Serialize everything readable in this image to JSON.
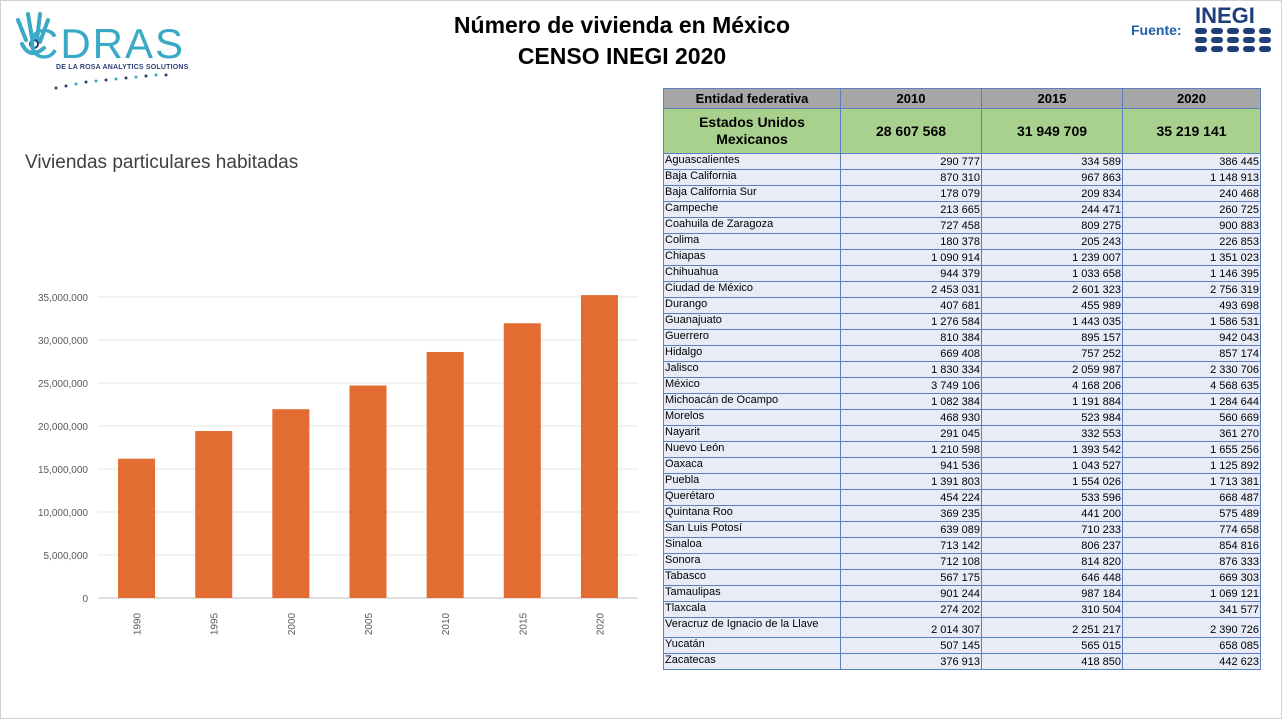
{
  "header": {
    "title_line1": "Número de vivienda en México",
    "title_line2": "CENSO INEGI 2020",
    "source_label": "Fuente:",
    "source_logo_text": "INEGI"
  },
  "logo": {
    "name": "CDRAS",
    "subtitle": "DE LA ROSA ANALYTICS SOLUTIONS"
  },
  "chart_data": {
    "type": "bar",
    "title": "Viviendas particulares habitadas",
    "categories": [
      "1990",
      "1995",
      "2000",
      "2005",
      "2010",
      "2015",
      "2020"
    ],
    "values": [
      16197802,
      19412777,
      21954733,
      24706956,
      28607568,
      31949709,
      35219141
    ],
    "ylim": [
      0,
      35000000
    ],
    "yticks": [
      "0",
      "5,000,000",
      "10,000,000",
      "15,000,000",
      "20,000,000",
      "25,000,000",
      "30,000,000",
      "35,000,000"
    ],
    "xlabel": "",
    "ylabel": "",
    "bar_color": "#e36c32",
    "grid": true
  },
  "table": {
    "headers": [
      "Entidad federativa",
      "2010",
      "2015",
      "2020"
    ],
    "total": {
      "name": "Estados Unidos Mexicanos",
      "v2010": "28 607 568",
      "v2015": "31 949 709",
      "v2020": "35 219 141"
    },
    "rows": [
      {
        "name": "Aguascalientes",
        "v2010": "290 777",
        "v2015": "334 589",
        "v2020": "386 445"
      },
      {
        "name": "Baja California",
        "v2010": "870 310",
        "v2015": "967 863",
        "v2020": "1 148 913"
      },
      {
        "name": "Baja California Sur",
        "v2010": "178 079",
        "v2015": "209 834",
        "v2020": "240 468"
      },
      {
        "name": "Campeche",
        "v2010": "213 665",
        "v2015": "244 471",
        "v2020": "260 725"
      },
      {
        "name": "Coahuila de Zaragoza",
        "v2010": "727 458",
        "v2015": "809 275",
        "v2020": "900 883"
      },
      {
        "name": "Colima",
        "v2010": "180 378",
        "v2015": "205 243",
        "v2020": "226 853"
      },
      {
        "name": "Chiapas",
        "v2010": "1 090 914",
        "v2015": "1 239 007",
        "v2020": "1 351 023"
      },
      {
        "name": "Chihuahua",
        "v2010": "944 379",
        "v2015": "1 033 658",
        "v2020": "1 146 395"
      },
      {
        "name": "Ciudad de México",
        "v2010": "2 453 031",
        "v2015": "2 601 323",
        "v2020": "2 756 319"
      },
      {
        "name": "Durango",
        "v2010": "407 681",
        "v2015": "455 989",
        "v2020": "493 698"
      },
      {
        "name": "Guanajuato",
        "v2010": "1 276 584",
        "v2015": "1 443 035",
        "v2020": "1 586 531"
      },
      {
        "name": "Guerrero",
        "v2010": "810 384",
        "v2015": "895 157",
        "v2020": "942 043"
      },
      {
        "name": "Hidalgo",
        "v2010": "669 408",
        "v2015": "757 252",
        "v2020": "857 174"
      },
      {
        "name": "Jalisco",
        "v2010": "1 830 334",
        "v2015": "2 059 987",
        "v2020": "2 330 706"
      },
      {
        "name": "México",
        "v2010": "3 749 106",
        "v2015": "4 168 206",
        "v2020": "4 568 635"
      },
      {
        "name": "Michoacán de Ocampo",
        "v2010": "1 082 384",
        "v2015": "1 191 884",
        "v2020": "1 284 644"
      },
      {
        "name": "Morelos",
        "v2010": "468 930",
        "v2015": "523 984",
        "v2020": "560 669"
      },
      {
        "name": "Nayarit",
        "v2010": "291 045",
        "v2015": "332 553",
        "v2020": "361 270"
      },
      {
        "name": "Nuevo León",
        "v2010": "1 210 598",
        "v2015": "1 393 542",
        "v2020": "1 655 256"
      },
      {
        "name": "Oaxaca",
        "v2010": "941 536",
        "v2015": "1 043 527",
        "v2020": "1 125 892"
      },
      {
        "name": "Puebla",
        "v2010": "1 391 803",
        "v2015": "1 554 026",
        "v2020": "1 713 381"
      },
      {
        "name": "Querétaro",
        "v2010": "454 224",
        "v2015": "533 596",
        "v2020": "668 487"
      },
      {
        "name": "Quintana Roo",
        "v2010": "369 235",
        "v2015": "441 200",
        "v2020": "575 489"
      },
      {
        "name": "San Luis Potosí",
        "v2010": "639 089",
        "v2015": "710 233",
        "v2020": "774 658"
      },
      {
        "name": "Sinaloa",
        "v2010": "713 142",
        "v2015": "806 237",
        "v2020": "854 816"
      },
      {
        "name": "Sonora",
        "v2010": "712 108",
        "v2015": "814 820",
        "v2020": "876 333"
      },
      {
        "name": "Tabasco",
        "v2010": "567 175",
        "v2015": "646 448",
        "v2020": "669 303"
      },
      {
        "name": "Tamaulipas",
        "v2010": "901 244",
        "v2015": "987 184",
        "v2020": "1 069 121"
      },
      {
        "name": "Tlaxcala",
        "v2010": "274 202",
        "v2015": "310 504",
        "v2020": "341 577"
      },
      {
        "name": "Veracruz de Ignacio de la Llave",
        "v2010": "2 014 307",
        "v2015": "2 251 217",
        "v2020": "2 390 726"
      },
      {
        "name": "Yucatán",
        "v2010": "507 145",
        "v2015": "565 015",
        "v2020": "658 085"
      },
      {
        "name": "Zacatecas",
        "v2010": "376 913",
        "v2015": "418 850",
        "v2020": "442 623"
      }
    ]
  }
}
